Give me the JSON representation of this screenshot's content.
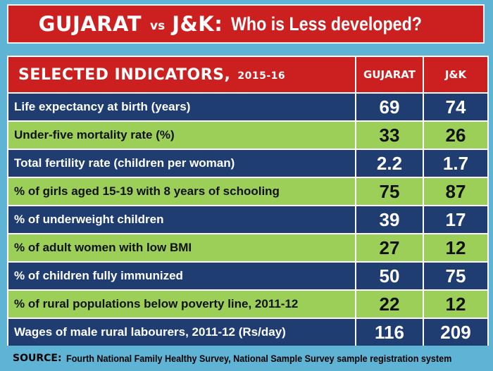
{
  "title": {
    "left": "GUJARAT",
    "vs": "vs",
    "right": "J&K:",
    "question": "Who is Less developed?"
  },
  "table": {
    "header": {
      "label": "SELECTED INDICATORS,",
      "year": "2015-16",
      "col1": "GUJARAT",
      "col2": "J&K"
    },
    "rows": [
      {
        "label": "Life expectancy at birth (years)",
        "gujarat": "69",
        "jk": "74"
      },
      {
        "label": "Under-five mortality rate (%)",
        "gujarat": "33",
        "jk": "26"
      },
      {
        "label": "Total fertility rate (children per woman)",
        "gujarat": "2.2",
        "jk": "1.7"
      },
      {
        "label": "% of girls aged 15-19 with 8 years of schooling",
        "gujarat": "75",
        "jk": "87"
      },
      {
        "label": "% of underweight children",
        "gujarat": "39",
        "jk": "17"
      },
      {
        "label": "% of adult women with low BMI",
        "gujarat": "27",
        "jk": "12"
      },
      {
        "label": "% of children fully immunized",
        "gujarat": "50",
        "jk": "75"
      },
      {
        "label": "% of rural populations below poverty line, 2011-12",
        "gujarat": "22",
        "jk": "12"
      },
      {
        "label": "Wages of male rural labourers, 2011-12 (Rs/day)",
        "gujarat": "116",
        "jk": "209"
      }
    ]
  },
  "source": {
    "key": "SOURCE:",
    "text": "Fourth National Family Healthy Survey, National Sample Survey sample registration system"
  },
  "colors": {
    "title_red": "#cc1f1f",
    "row_dark_blue": "#1f3d70",
    "row_light_green": "#9ccf58",
    "background_blue": "#5fb3d4"
  }
}
